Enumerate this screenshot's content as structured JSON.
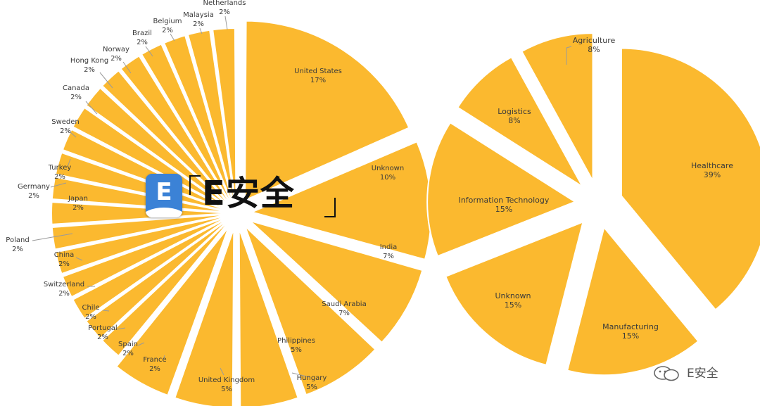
{
  "chart_data": [
    {
      "type": "pie",
      "title": "",
      "slices": [
        {
          "label": "United States",
          "value": 17,
          "text": "17%"
        },
        {
          "label": "Unknown",
          "value": 10,
          "text": "10%"
        },
        {
          "label": "India",
          "value": 7,
          "text": "7%"
        },
        {
          "label": "Saudi Arabia",
          "value": 7,
          "text": "7%"
        },
        {
          "label": "Philippines",
          "value": 5,
          "text": "5%"
        },
        {
          "label": "Hungary",
          "value": 5,
          "text": "5%"
        },
        {
          "label": "United Kingdom",
          "value": 5,
          "text": "5%"
        },
        {
          "label": "France",
          "value": 2,
          "text": "2%"
        },
        {
          "label": "Spain",
          "value": 2,
          "text": "2%"
        },
        {
          "label": "Portugal",
          "value": 2,
          "text": "2%"
        },
        {
          "label": "Chile",
          "value": 2,
          "text": "2%"
        },
        {
          "label": "Switzerland",
          "value": 2,
          "text": "2%"
        },
        {
          "label": "China",
          "value": 2,
          "text": "2%"
        },
        {
          "label": "Poland",
          "value": 2,
          "text": "2%"
        },
        {
          "label": "Japan",
          "value": 2,
          "text": "2%"
        },
        {
          "label": "Germany",
          "value": 2,
          "text": "2%"
        },
        {
          "label": "Turkey",
          "value": 2,
          "text": "2%"
        },
        {
          "label": "Sweden",
          "value": 2,
          "text": "2%"
        },
        {
          "label": "Canada",
          "value": 2,
          "text": "2%"
        },
        {
          "label": "Hong Kong",
          "value": 2,
          "text": "2%"
        },
        {
          "label": "Norway",
          "value": 2,
          "text": "2%"
        },
        {
          "label": "Brazil",
          "value": 2,
          "text": "2%"
        },
        {
          "label": "Belgium",
          "value": 2,
          "text": "2%"
        },
        {
          "label": "Malaysia",
          "value": 2,
          "text": "2%"
        },
        {
          "label": "Netherlands",
          "value": 2,
          "text": "2%"
        }
      ],
      "color": "#fbb92f"
    },
    {
      "type": "pie",
      "title": "",
      "slices": [
        {
          "label": "Healthcare",
          "value": 39,
          "text": "39%"
        },
        {
          "label": "Manufacturing",
          "value": 15,
          "text": "15%"
        },
        {
          "label": "Unknown",
          "value": 15,
          "text": "15%"
        },
        {
          "label": "Information Technology",
          "value": 15,
          "text": "15%"
        },
        {
          "label": "Logistics",
          "value": 8,
          "text": "8%"
        },
        {
          "label": "Agriculture",
          "value": 8,
          "text": "8%"
        }
      ],
      "color": "#fbb92f"
    }
  ],
  "logo": {
    "letter": "E",
    "text": "E安全"
  },
  "watermark": {
    "text": "E安全",
    "icon": "wechat-icon"
  }
}
